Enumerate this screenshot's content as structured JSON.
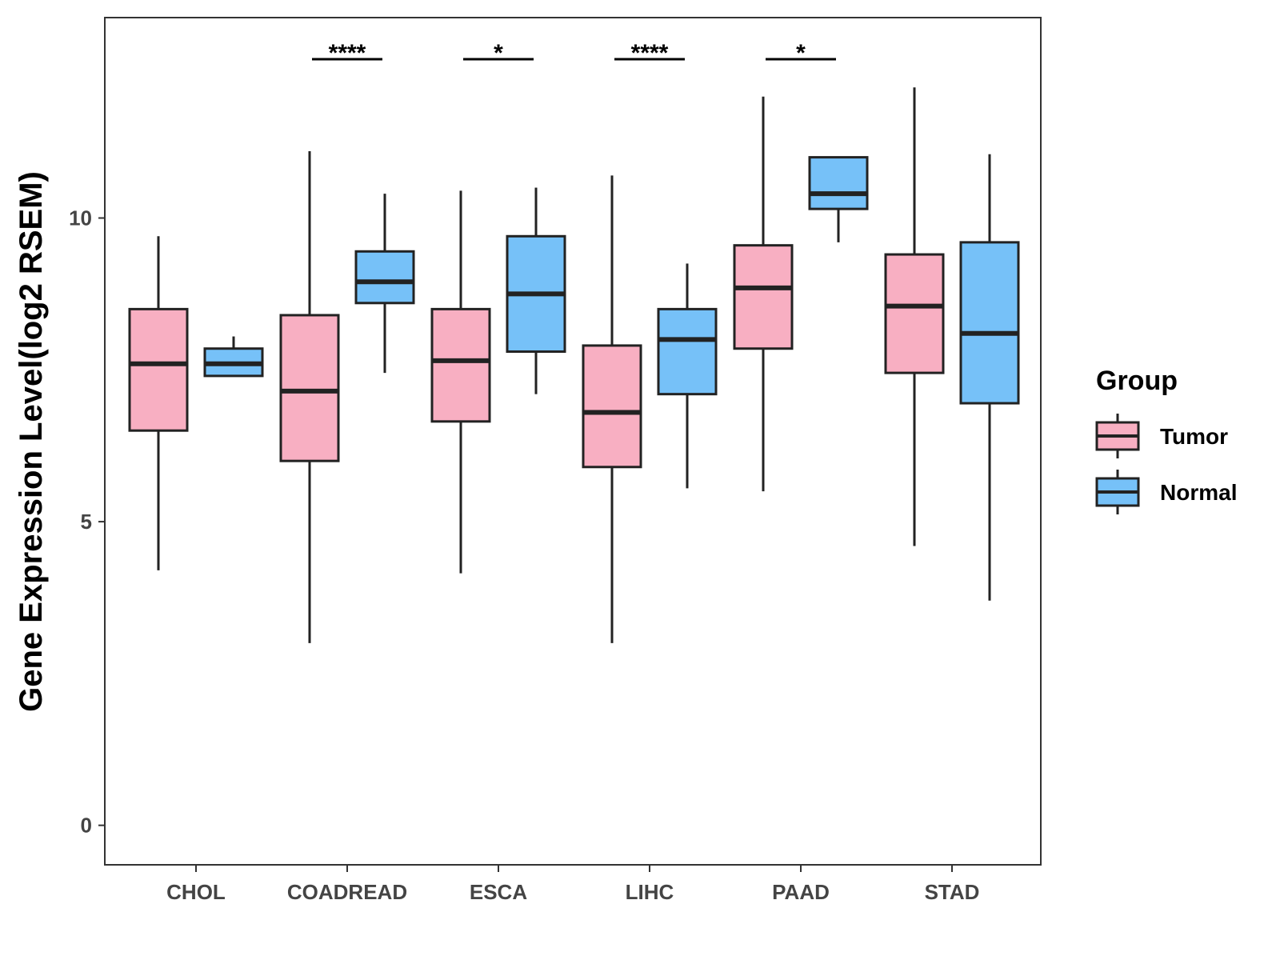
{
  "chart_data": {
    "type": "boxplot",
    "ylabel": "Gene Expression Level(log2 RSEM)",
    "xlabel": "",
    "ylim": [
      -0.65,
      13.3
    ],
    "yticks": [
      0,
      5,
      10
    ],
    "grid": false,
    "categories": [
      "CHOL",
      "COADREAD",
      "ESCA",
      "LIHC",
      "PAAD",
      "STAD"
    ],
    "legend": {
      "title": "Group",
      "position": "right",
      "items": [
        {
          "name": "Tumor",
          "color": "#f8afc2"
        },
        {
          "name": "Normal",
          "color": "#76c1f8"
        }
      ]
    },
    "series": [
      {
        "name": "Tumor",
        "color": "#f8afc2",
        "boxes": [
          {
            "min": 4.2,
            "q1": 6.5,
            "median": 7.6,
            "q3": 8.5,
            "max": 9.7
          },
          {
            "min": 3.0,
            "q1": 6.0,
            "median": 7.15,
            "q3": 8.4,
            "max": 11.1
          },
          {
            "min": 4.15,
            "q1": 6.65,
            "median": 7.65,
            "q3": 8.5,
            "max": 10.45
          },
          {
            "min": 3.0,
            "q1": 5.9,
            "median": 6.8,
            "q3": 7.9,
            "max": 10.7
          },
          {
            "min": 5.5,
            "q1": 7.85,
            "median": 8.85,
            "q3": 9.55,
            "max": 12.0
          },
          {
            "min": 4.6,
            "q1": 7.45,
            "median": 8.55,
            "q3": 9.4,
            "max": 12.15
          }
        ]
      },
      {
        "name": "Normal",
        "color": "#76c1f8",
        "boxes": [
          {
            "min": 7.4,
            "q1": 7.4,
            "median": 7.6,
            "q3": 7.85,
            "max": 8.05
          },
          {
            "min": 7.45,
            "q1": 8.6,
            "median": 8.95,
            "q3": 9.45,
            "max": 10.4
          },
          {
            "min": 7.1,
            "q1": 7.8,
            "median": 8.75,
            "q3": 9.7,
            "max": 10.5
          },
          {
            "min": 5.55,
            "q1": 7.1,
            "median": 8.0,
            "q3": 8.5,
            "max": 9.25
          },
          {
            "min": 9.6,
            "q1": 10.15,
            "median": 10.4,
            "q3": 11.0,
            "max": 11.0
          },
          {
            "min": 3.7,
            "q1": 6.95,
            "median": 8.1,
            "q3": 9.6,
            "max": 11.05
          }
        ]
      }
    ],
    "significance": [
      "",
      "****",
      "*",
      "****",
      "*",
      ""
    ]
  }
}
